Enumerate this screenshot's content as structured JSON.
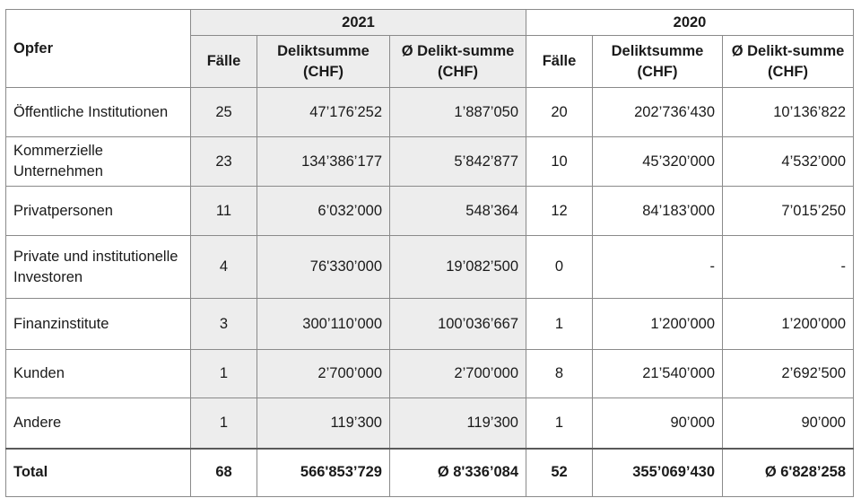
{
  "header": {
    "victim_label": "Opfer",
    "year_a": "2021",
    "year_b": "2020",
    "col_cases": "Fälle",
    "col_sum": "Deliktsumme (CHF)",
    "col_avg": "Ø Delikt-summe (CHF)"
  },
  "rows": [
    {
      "label": "Öffentliche Institutionen",
      "a_cases": "25",
      "a_sum": "47’176’252",
      "a_avg": "1’887’050",
      "b_cases": "20",
      "b_sum": "202’736’430",
      "b_avg": "10’136’822"
    },
    {
      "label": "Kommerzielle Unternehmen",
      "a_cases": "23",
      "a_sum": "134’386’177",
      "a_avg": "5’842’877",
      "b_cases": "10",
      "b_sum": "45’320’000",
      "b_avg": "4’532’000"
    },
    {
      "label": "Privatpersonen",
      "a_cases": "11",
      "a_sum": "6’032’000",
      "a_avg": "548’364",
      "b_cases": "12",
      "b_sum": "84’183’000",
      "b_avg": "7’015’250"
    },
    {
      "label": "Private und institutionelle Investoren",
      "a_cases": "4",
      "a_sum": "76'330’000",
      "a_avg": "19’082’500",
      "b_cases": "0",
      "b_sum": "-",
      "b_avg": "-"
    },
    {
      "label": "Finanzinstitute",
      "a_cases": "3",
      "a_sum": "300’110’000",
      "a_avg": "100’036’667",
      "b_cases": "1",
      "b_sum": "1’200’000",
      "b_avg": "1’200’000"
    },
    {
      "label": "Kunden",
      "a_cases": "1",
      "a_sum": "2’700’000",
      "a_avg": "2’700’000",
      "b_cases": "8",
      "b_sum": "21’540’000",
      "b_avg": "2’692’500"
    },
    {
      "label": "Andere",
      "a_cases": "1",
      "a_sum": "119’300",
      "a_avg": "119’300",
      "b_cases": "1",
      "b_sum": "90’000",
      "b_avg": "90’000"
    }
  ],
  "total": {
    "label": "Total",
    "a_cases": "68",
    "a_sum": "566'853’729",
    "a_avg": "Ø 8'336’084",
    "b_cases": "52",
    "b_sum": "355’069’430",
    "b_avg": "Ø 6'828’258"
  }
}
